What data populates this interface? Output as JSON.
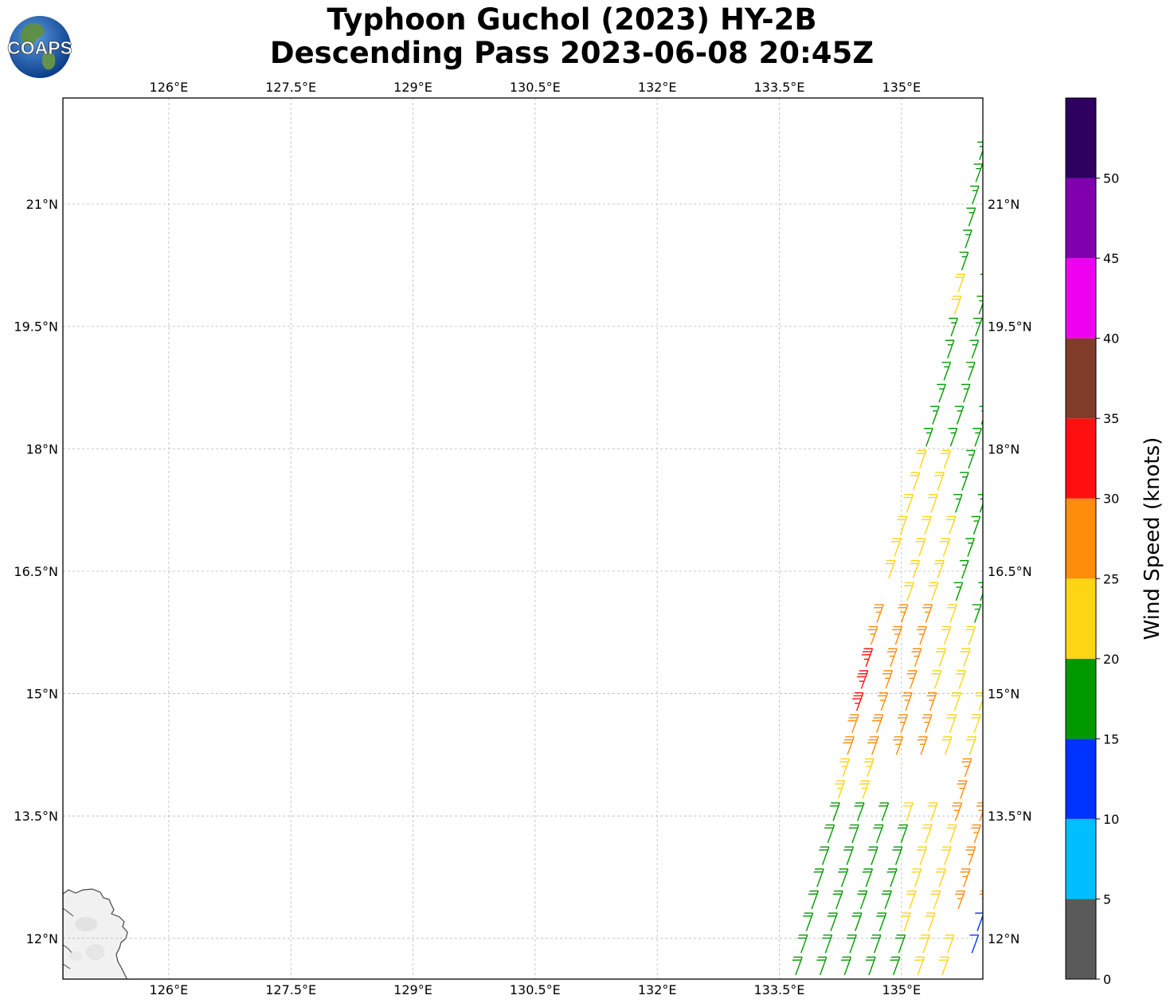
{
  "title": {
    "line1": "Typhoon Guchol (2023) HY-2B",
    "line2": "Descending Pass 2023-06-08 20:45Z"
  },
  "logo": {
    "text": "COAPS",
    "icon": "globe-logo-icon"
  },
  "map": {
    "lon_range": [
      124.7,
      136.0
    ],
    "lat_range": [
      11.5,
      22.3
    ],
    "lon_ticks": [
      "126°E",
      "127.5°E",
      "129°E",
      "130.5°E",
      "132°E",
      "133.5°E",
      "135°E"
    ],
    "lon_tick_values": [
      126,
      127.5,
      129,
      130.5,
      132,
      133.5,
      135
    ],
    "lat_ticks": [
      "12°N",
      "13.5°N",
      "15°N",
      "16.5°N",
      "18°N",
      "19.5°N",
      "21°N"
    ],
    "lat_tick_values": [
      12,
      13.5,
      15,
      16.5,
      18,
      19.5,
      21
    ],
    "gridlines": true
  },
  "colorbar": {
    "label": "Wind Speed (knots)",
    "ticks": [
      "0",
      "5",
      "10",
      "15",
      "20",
      "25",
      "30",
      "35",
      "40",
      "45",
      "50"
    ],
    "bins": [
      {
        "min": 0,
        "max": 5,
        "color": "#5a5a5a"
      },
      {
        "min": 5,
        "max": 10,
        "color": "#00bfff"
      },
      {
        "min": 10,
        "max": 15,
        "color": "#0033ff"
      },
      {
        "min": 15,
        "max": 20,
        "color": "#009a00"
      },
      {
        "min": 20,
        "max": 25,
        "color": "#fed513"
      },
      {
        "min": 25,
        "max": 30,
        "color": "#ff8c0a"
      },
      {
        "min": 30,
        "max": 35,
        "color": "#ff1010"
      },
      {
        "min": 35,
        "max": 40,
        "color": "#803c28"
      },
      {
        "min": 40,
        "max": 45,
        "color": "#f000f0"
      },
      {
        "min": 45,
        "max": 50,
        "color": "#8000b0"
      },
      {
        "min": 50,
        "max": 55,
        "color": "#2e0060"
      }
    ]
  },
  "chart_data": {
    "type": "scatter",
    "title": "Typhoon Guchol (2023) HY-2B Descending Pass 2023-06-08 20:45Z",
    "xlabel": "",
    "ylabel": "",
    "xlim": [
      124.7,
      136.0
    ],
    "ylim": [
      11.5,
      22.3
    ],
    "grid": true,
    "swath": {
      "description_visible": "wind barbs along satellite swath",
      "west_edge": [
        [
          133.7,
          11.55
        ],
        [
          134.2,
          13.6
        ],
        [
          134.6,
          15.5
        ],
        [
          135.0,
          17.0
        ],
        [
          135.5,
          18.7
        ],
        [
          136.0,
          21.8
        ]
      ],
      "east_edge": [
        [
          136.0,
          11.55
        ],
        [
          136.0,
          22.1
        ]
      ]
    },
    "barb_zones": [
      {
        "lat": [
          11.5,
          13.7
        ],
        "lon": [
          133.7,
          135.0
        ],
        "speed": 18
      },
      {
        "lat": [
          11.5,
          13.7
        ],
        "lon": [
          135.0,
          135.6
        ],
        "speed": 22
      },
      {
        "lat": [
          11.8,
          12.4
        ],
        "lon": [
          135.7,
          136.0
        ],
        "speed": 12
      },
      {
        "lat": [
          12.3,
          14.5
        ],
        "lon": [
          135.6,
          136.0
        ],
        "speed": 27
      },
      {
        "lat": [
          13.6,
          14.5
        ],
        "lon": [
          134.2,
          134.8
        ],
        "speed": 23
      },
      {
        "lat": [
          14.0,
          15.0
        ],
        "lon": [
          134.3,
          134.7
        ],
        "speed": 28
      },
      {
        "lat": [
          14.7,
          15.5
        ],
        "lon": [
          134.4,
          134.7
        ],
        "speed": 33
      },
      {
        "lat": [
          14.0,
          16.0
        ],
        "lon": [
          134.7,
          135.4
        ],
        "speed": 27
      },
      {
        "lat": [
          14.0,
          16.0
        ],
        "lon": [
          135.4,
          136.0
        ],
        "speed": 22
      },
      {
        "lat": [
          15.5,
          16.1
        ],
        "lon": [
          134.6,
          135.1
        ],
        "speed": 26
      },
      {
        "lat": [
          16.0,
          18.9
        ],
        "lon": [
          134.8,
          135.6
        ],
        "speed": 22
      },
      {
        "lat": [
          15.7,
          18.0
        ],
        "lon": [
          135.6,
          136.0
        ],
        "speed": 17
      },
      {
        "lat": [
          18.0,
          22.0
        ],
        "lon": [
          135.3,
          136.0
        ],
        "speed": 17
      },
      {
        "lat": [
          19.5,
          20.0
        ],
        "lon": [
          135.5,
          135.8
        ],
        "speed": 21
      }
    ]
  }
}
